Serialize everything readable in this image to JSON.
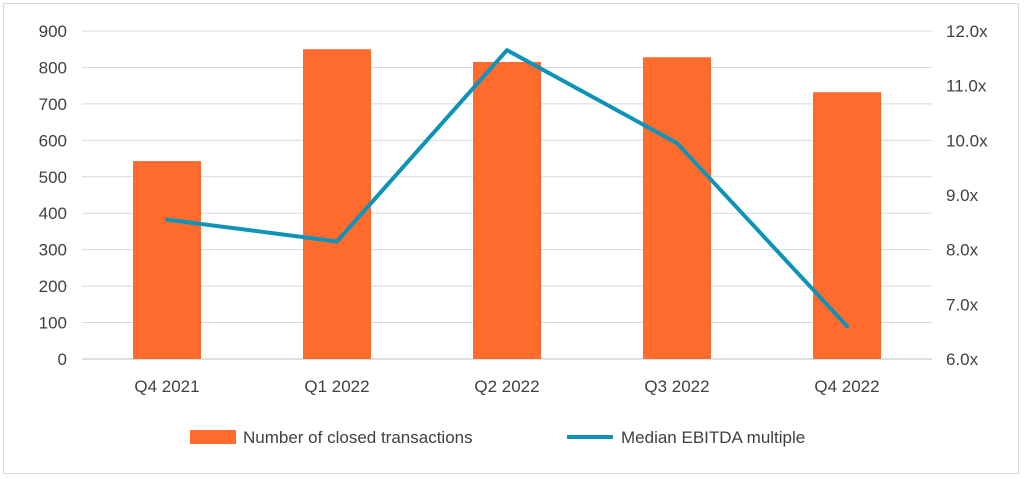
{
  "chart_data": {
    "type": "bar",
    "categories": [
      "Q4 2021",
      "Q1 2022",
      "Q2 2022",
      "Q3 2022",
      "Q4 2022"
    ],
    "series": [
      {
        "name": "Number of closed transactions",
        "type": "bar",
        "axis": "left",
        "color": "#FF6B2C",
        "values": [
          543,
          850,
          815,
          828,
          732
        ]
      },
      {
        "name": "Median EBITDA multiple",
        "type": "line",
        "axis": "right",
        "color": "#0E93B8",
        "values": [
          8.55,
          8.15,
          11.65,
          9.95,
          6.6
        ]
      }
    ],
    "y_left": {
      "range": [
        0,
        900
      ],
      "ticks": [
        "0",
        "100",
        "200",
        "300",
        "400",
        "500",
        "600",
        "700",
        "800",
        "900"
      ]
    },
    "y_right": {
      "range": [
        6.0,
        12.0
      ],
      "ticks": [
        "6.0x",
        "7.0x",
        "8.0x",
        "9.0x",
        "10.0x",
        "11.0x",
        "12.0x"
      ]
    },
    "grid": true,
    "legend_position": "bottom"
  }
}
